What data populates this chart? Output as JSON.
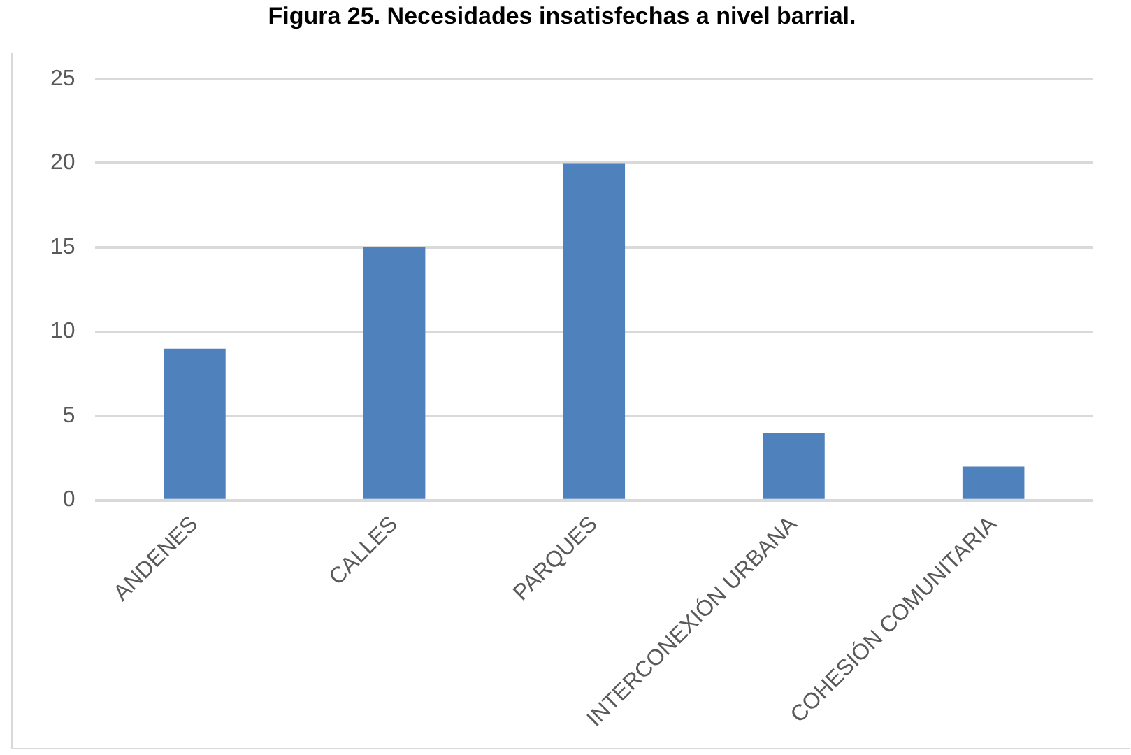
{
  "chart_data": {
    "type": "bar",
    "title": "Figura 25. Necesidades insatisfechas a nivel barrial.",
    "categories": [
      "ANDENES",
      "CALLES",
      "PARQUES",
      "INTERCONEXIÓN URBANA",
      "COHESIÓN COMUNITARIA"
    ],
    "values": [
      9,
      15,
      20,
      4,
      2
    ],
    "color": "#4f81bd",
    "ylim": [
      0,
      25
    ],
    "yticks": [
      0,
      5,
      10,
      15,
      20,
      25
    ],
    "grid": "y"
  }
}
